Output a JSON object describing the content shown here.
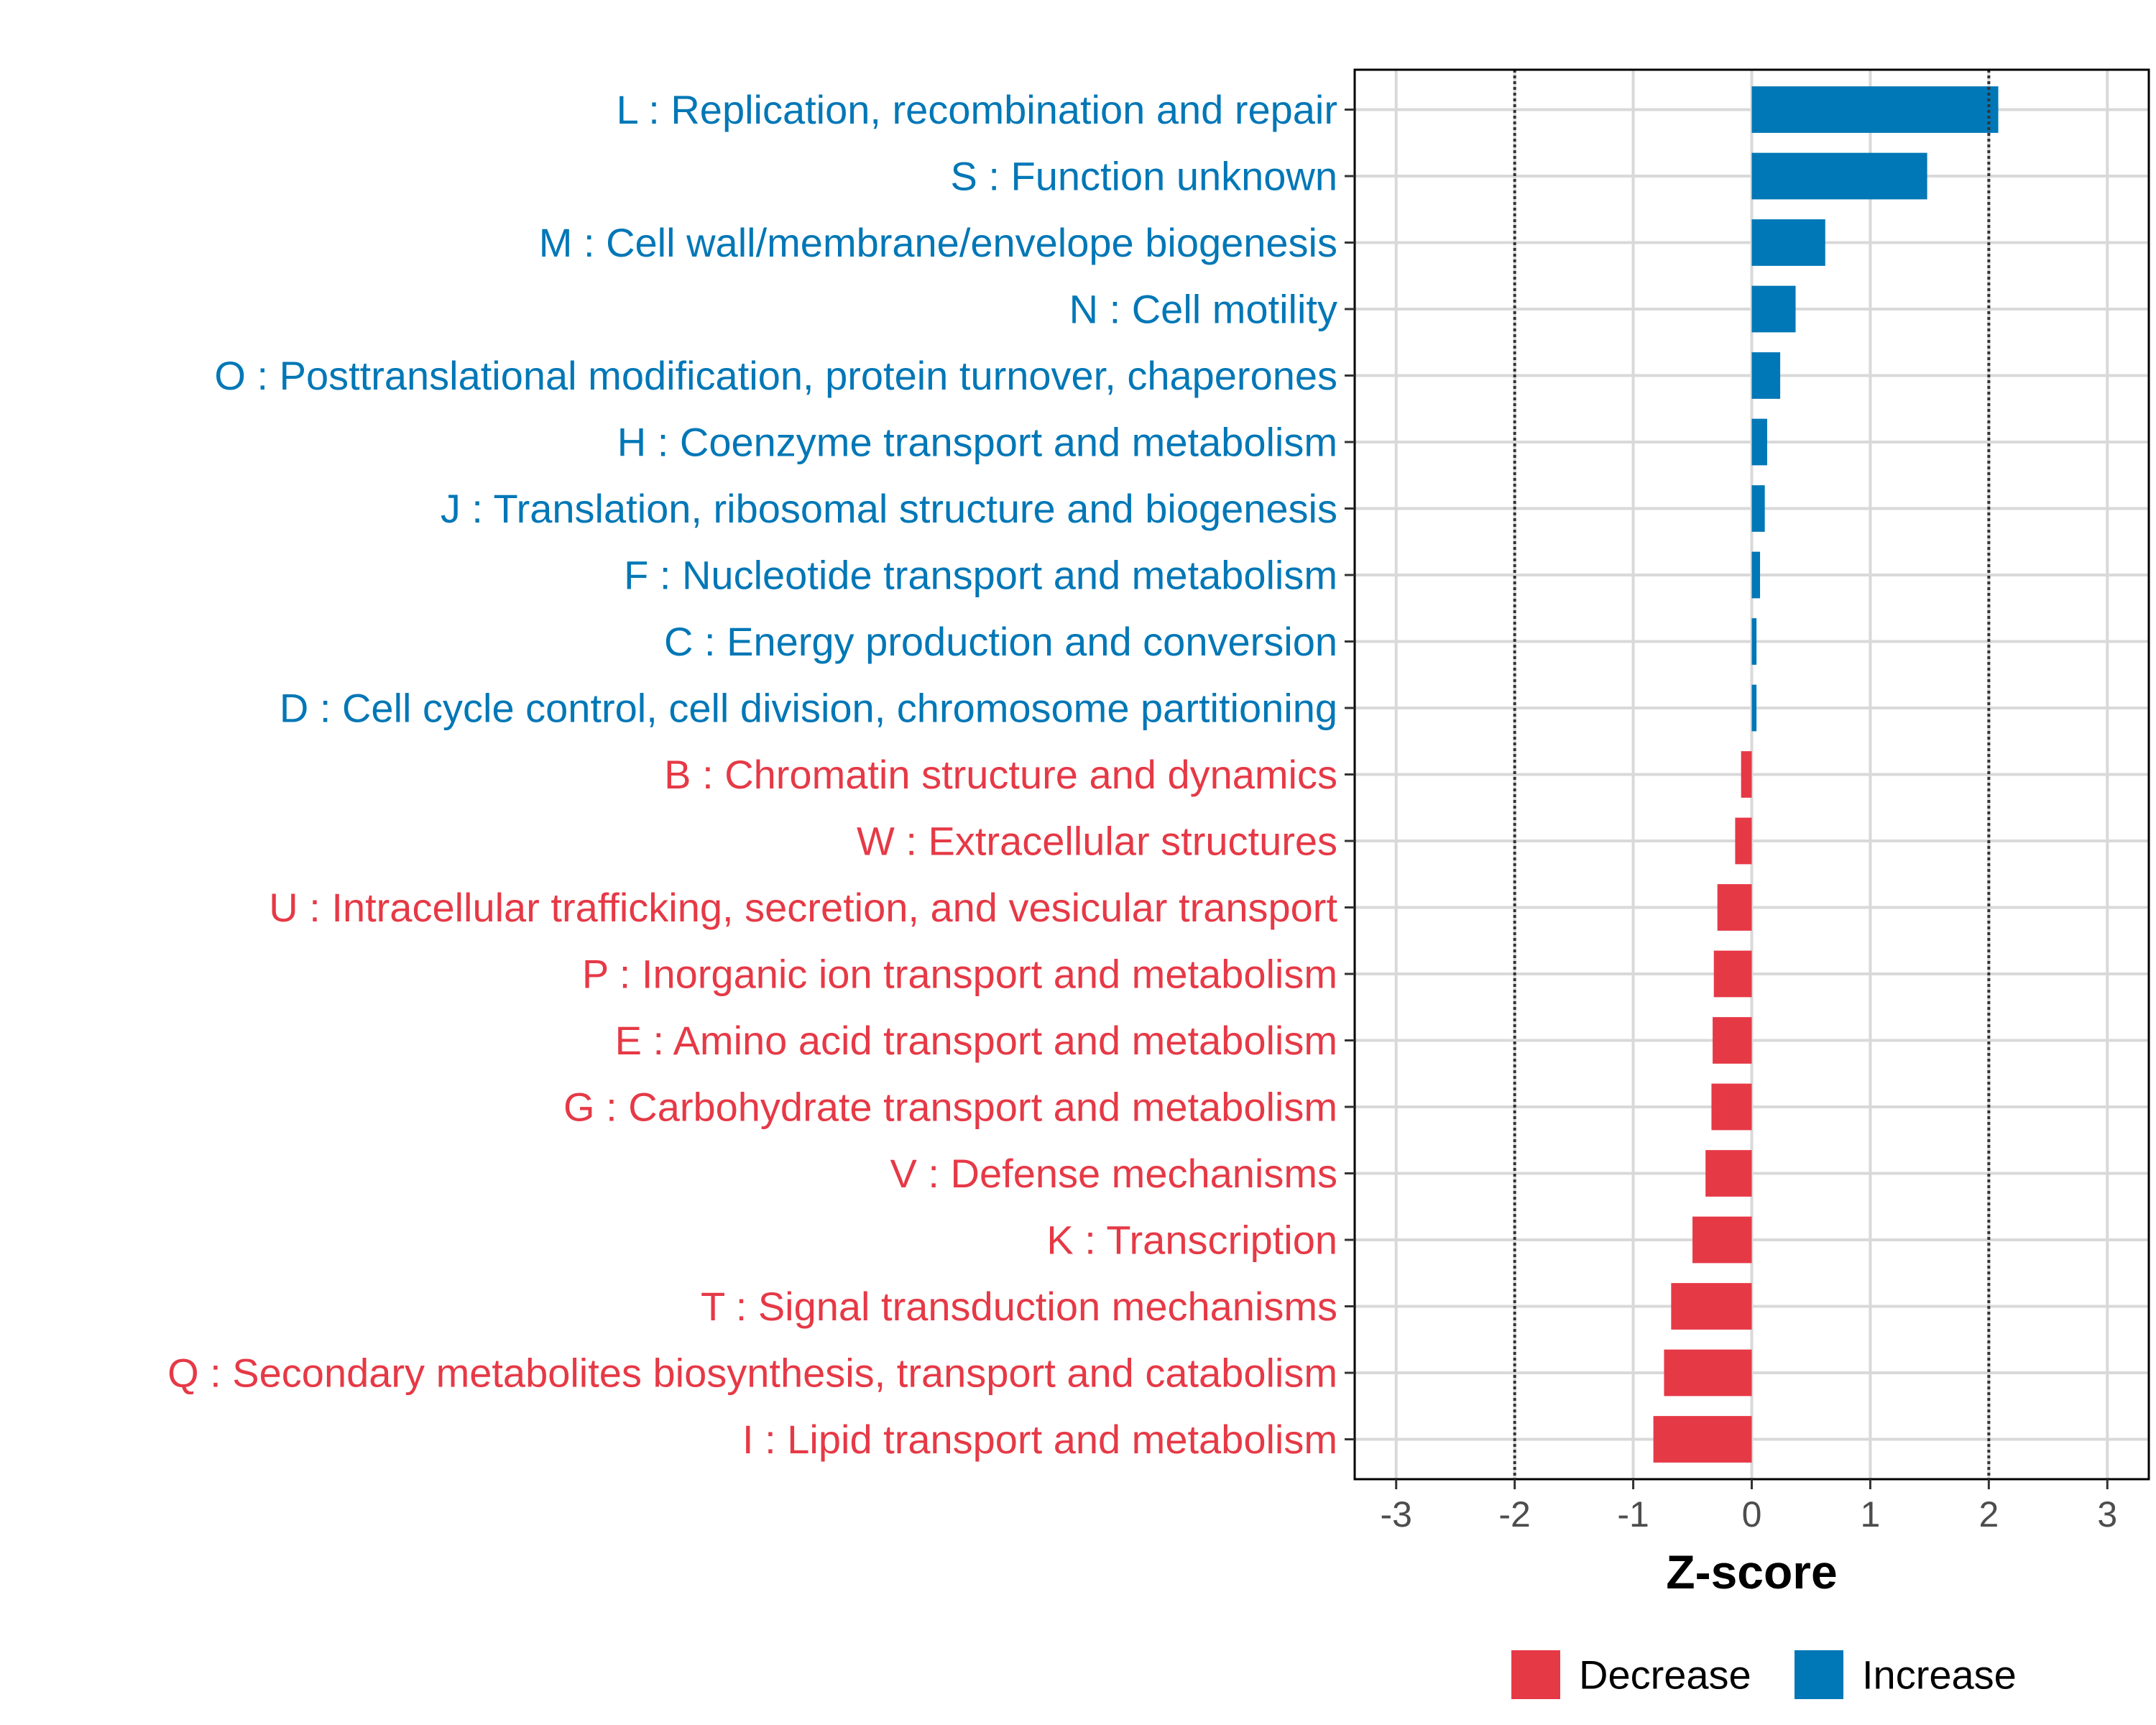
{
  "chart_data": {
    "type": "bar",
    "orientation": "horizontal",
    "title": "",
    "xlabel": "Z-score",
    "ylabel": "",
    "xlim": [
      -3.35,
      3.35
    ],
    "xticks": [
      -3,
      -2,
      -1,
      0,
      1,
      2,
      3
    ],
    "xtick_labels": [
      "-3",
      "-2",
      "-1",
      "0",
      "1",
      "2",
      "3"
    ],
    "threshold_lines": [
      -2,
      2
    ],
    "grid": true,
    "categories": [
      "L : Replication, recombination and repair",
      "S : Function unknown",
      "M : Cell wall/membrane/envelope biogenesis",
      "N : Cell motility",
      "O : Posttranslational modification, protein turnover, chaperones",
      "H : Coenzyme transport and metabolism",
      "J : Translation, ribosomal structure and biogenesis",
      "F : Nucleotide transport and metabolism",
      "C : Energy production and conversion",
      "D : Cell cycle control, cell division, chromosome partitioning",
      "B : Chromatin structure and dynamics",
      "W : Extracellular structures",
      "U : Intracellular trafficking, secretion, and vesicular transport",
      "P : Inorganic ion transport and metabolism",
      "E : Amino acid transport and metabolism",
      "G : Carbohydrate transport and metabolism",
      "V : Defense mechanisms",
      "K : Transcription",
      "T : Signal transduction mechanisms",
      "Q : Secondary metabolites biosynthesis, transport and catabolism",
      "I : Lipid transport and metabolism"
    ],
    "values": [
      2.08,
      1.48,
      0.62,
      0.37,
      0.24,
      0.13,
      0.11,
      0.07,
      0.04,
      0.04,
      -0.09,
      -0.14,
      -0.29,
      -0.32,
      -0.33,
      -0.34,
      -0.39,
      -0.5,
      -0.68,
      -0.74,
      -0.83
    ],
    "groups": [
      "Increase",
      "Increase",
      "Increase",
      "Increase",
      "Increase",
      "Increase",
      "Increase",
      "Increase",
      "Increase",
      "Increase",
      "Decrease",
      "Decrease",
      "Decrease",
      "Decrease",
      "Decrease",
      "Decrease",
      "Decrease",
      "Decrease",
      "Decrease",
      "Decrease",
      "Decrease"
    ],
    "legend": {
      "position": "bottom",
      "entries": [
        {
          "name": "Decrease",
          "color": "#e63946"
        },
        {
          "name": "Increase",
          "color": "#0077b6"
        }
      ]
    }
  }
}
